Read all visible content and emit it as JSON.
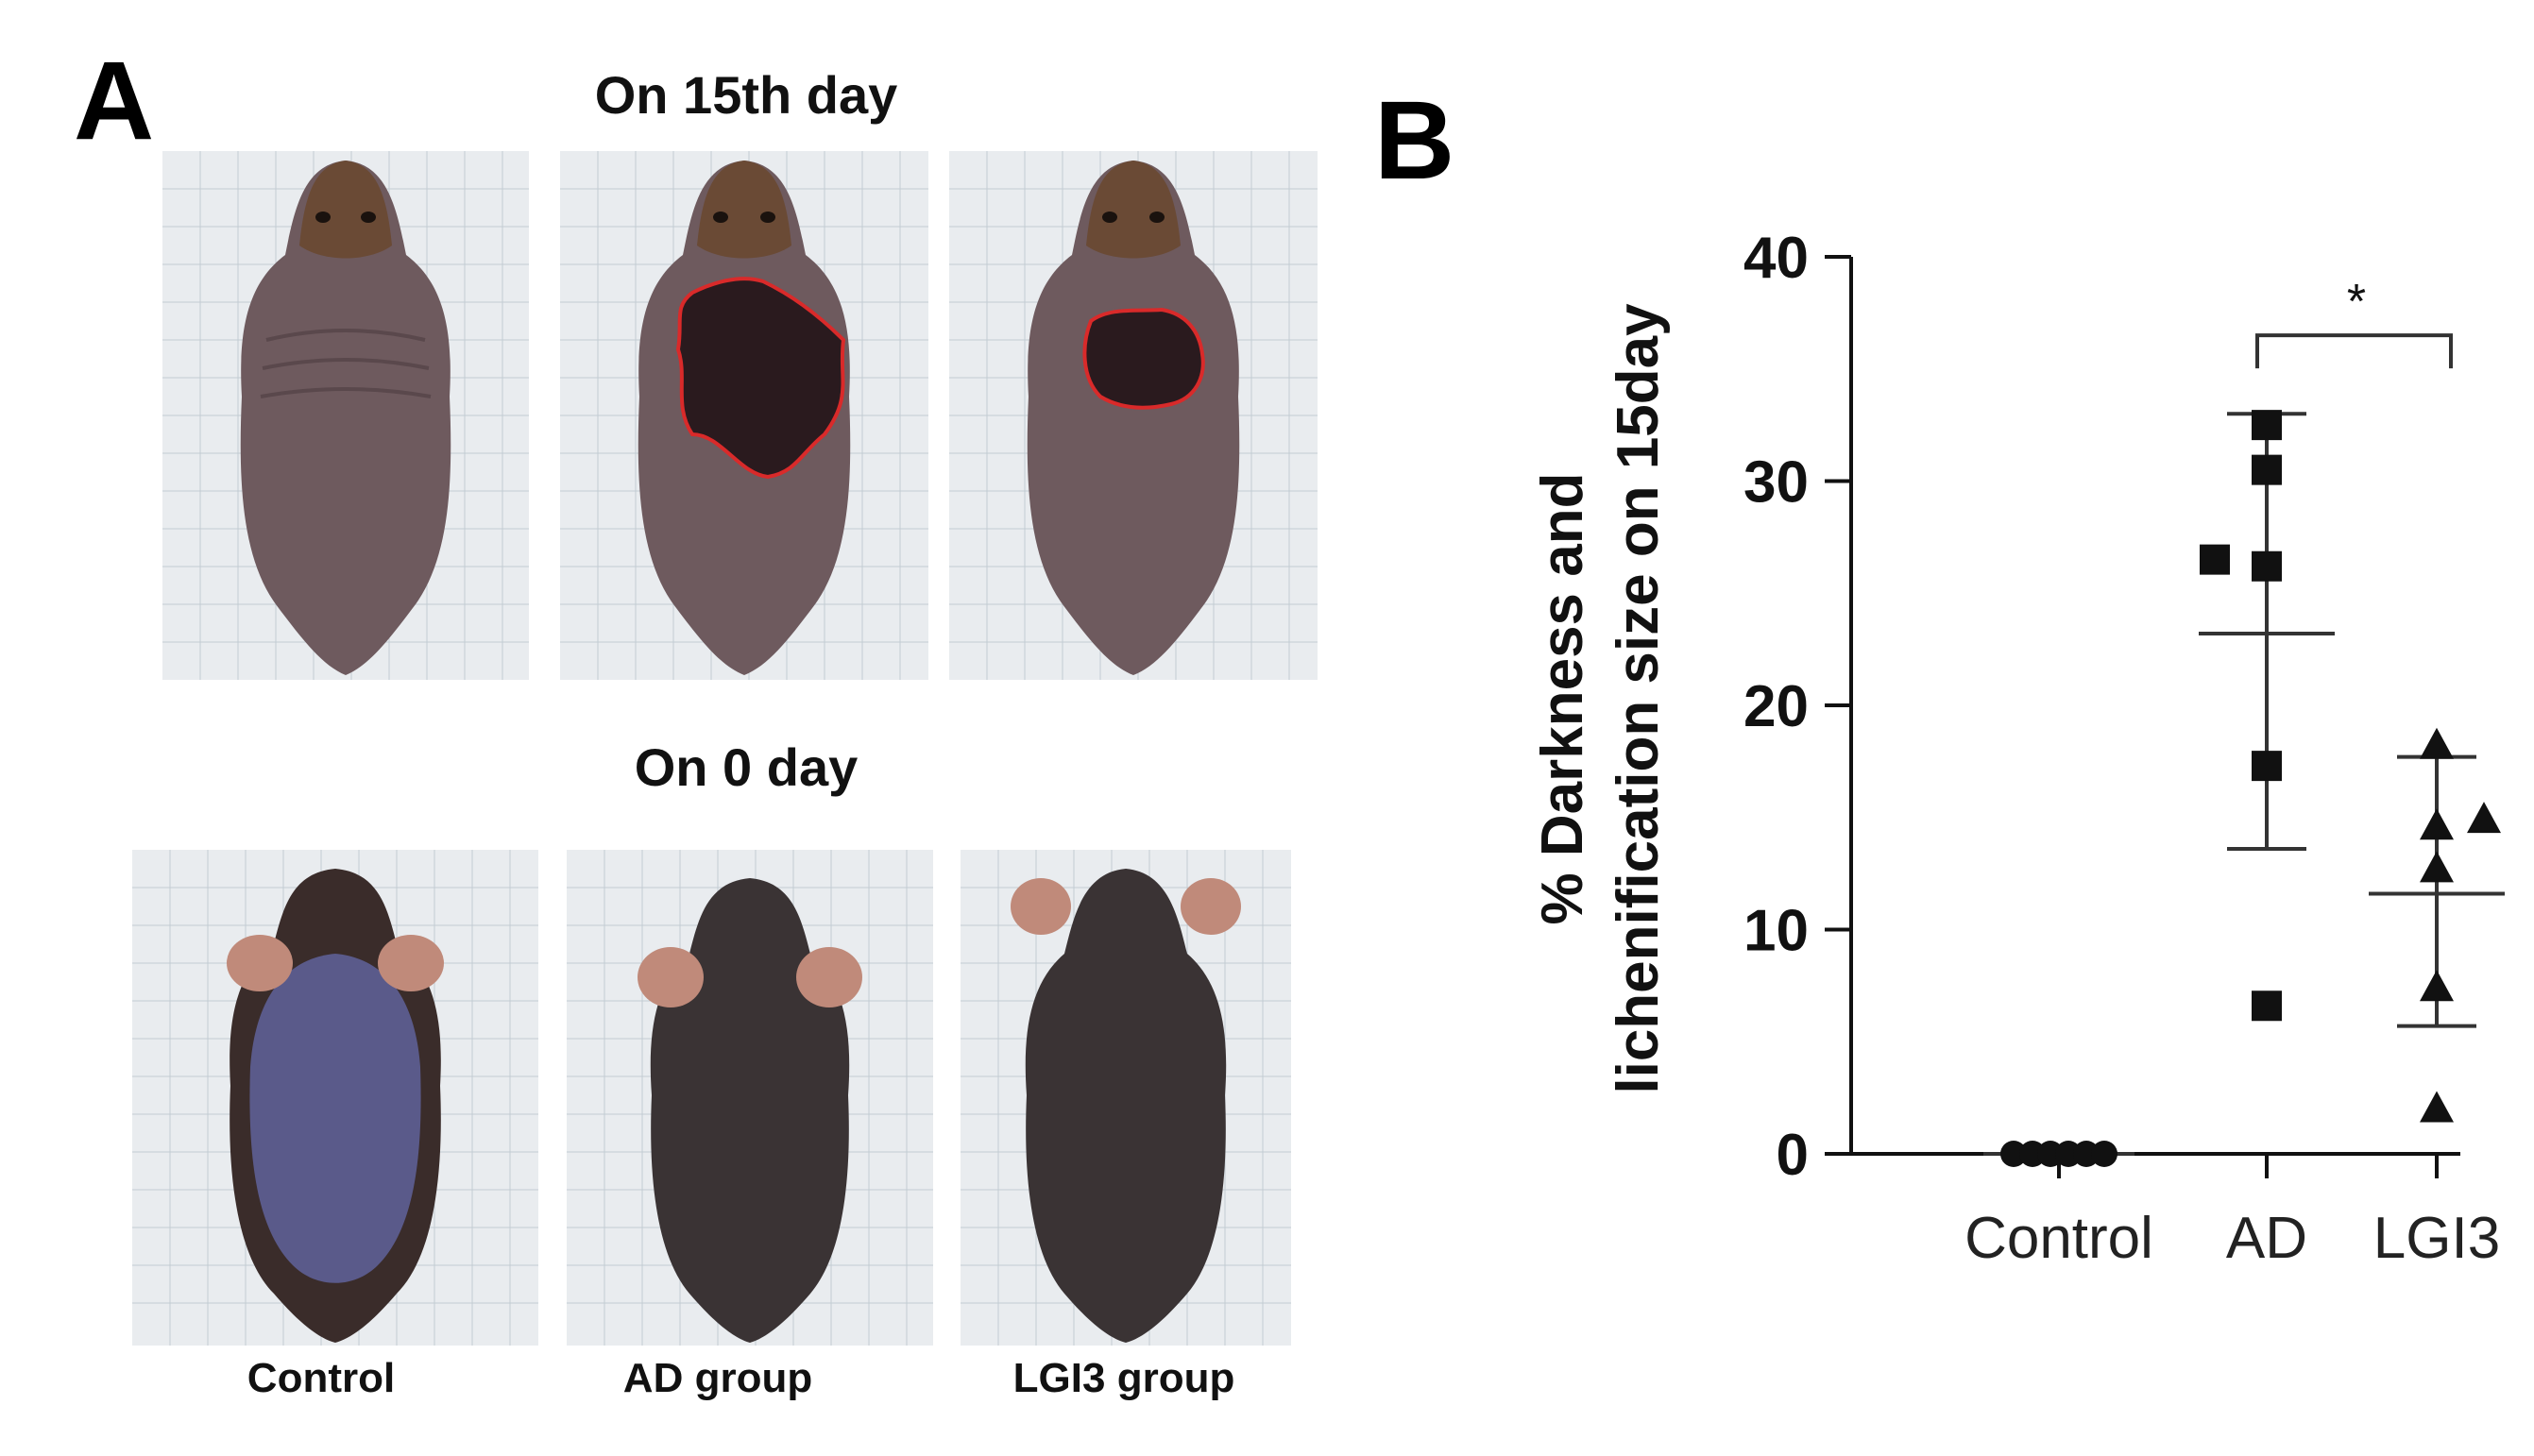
{
  "panel_a": {
    "letter": "A",
    "row_titles": {
      "top": "On 15th day",
      "bottom": "On 0 day"
    },
    "group_labels": [
      "Control",
      "AD group",
      "LGI3 group"
    ],
    "photo_colors": {
      "background": "#e9ecef",
      "grid": "#b8c4cc",
      "mouse_fur": "#6e5a52",
      "mouse_head": "#6a4a35",
      "lesion_outline": "#d92a2a",
      "lesion_fill": "#2a1a1e",
      "shaved_day0_control": "#5a5a8a",
      "shaved_day0_dark": "#3a3334"
    }
  },
  "panel_b": {
    "letter": "B",
    "chart_data": {
      "type": "scatter",
      "ylabel_line1": "% Darkness and",
      "ylabel_line2": "lichenification size on 15day",
      "ylim": [
        0,
        40
      ],
      "yticks": [
        0,
        10,
        20,
        30,
        40
      ],
      "categories": [
        "Control",
        "AD",
        "LGI3"
      ],
      "significance": {
        "between": [
          "AD",
          "LGI3"
        ],
        "label": "*"
      },
      "series": [
        {
          "category": "Control",
          "marker": "circle",
          "values": [
            0,
            0,
            0,
            0,
            0,
            0
          ],
          "mean": 0,
          "sd": 0
        },
        {
          "category": "AD",
          "marker": "square",
          "values": [
            32.5,
            30.5,
            26.5,
            26.2,
            17.3,
            6.6
          ],
          "mean": 23.2,
          "sd_low": 13.6,
          "sd_high": 33.0
        },
        {
          "category": "LGI3",
          "marker": "triangle",
          "values": [
            18.2,
            14.9,
            14.6,
            12.7,
            7.4,
            2.0
          ],
          "mean": 11.6,
          "sd_low": 5.7,
          "sd_high": 17.7
        }
      ]
    }
  }
}
